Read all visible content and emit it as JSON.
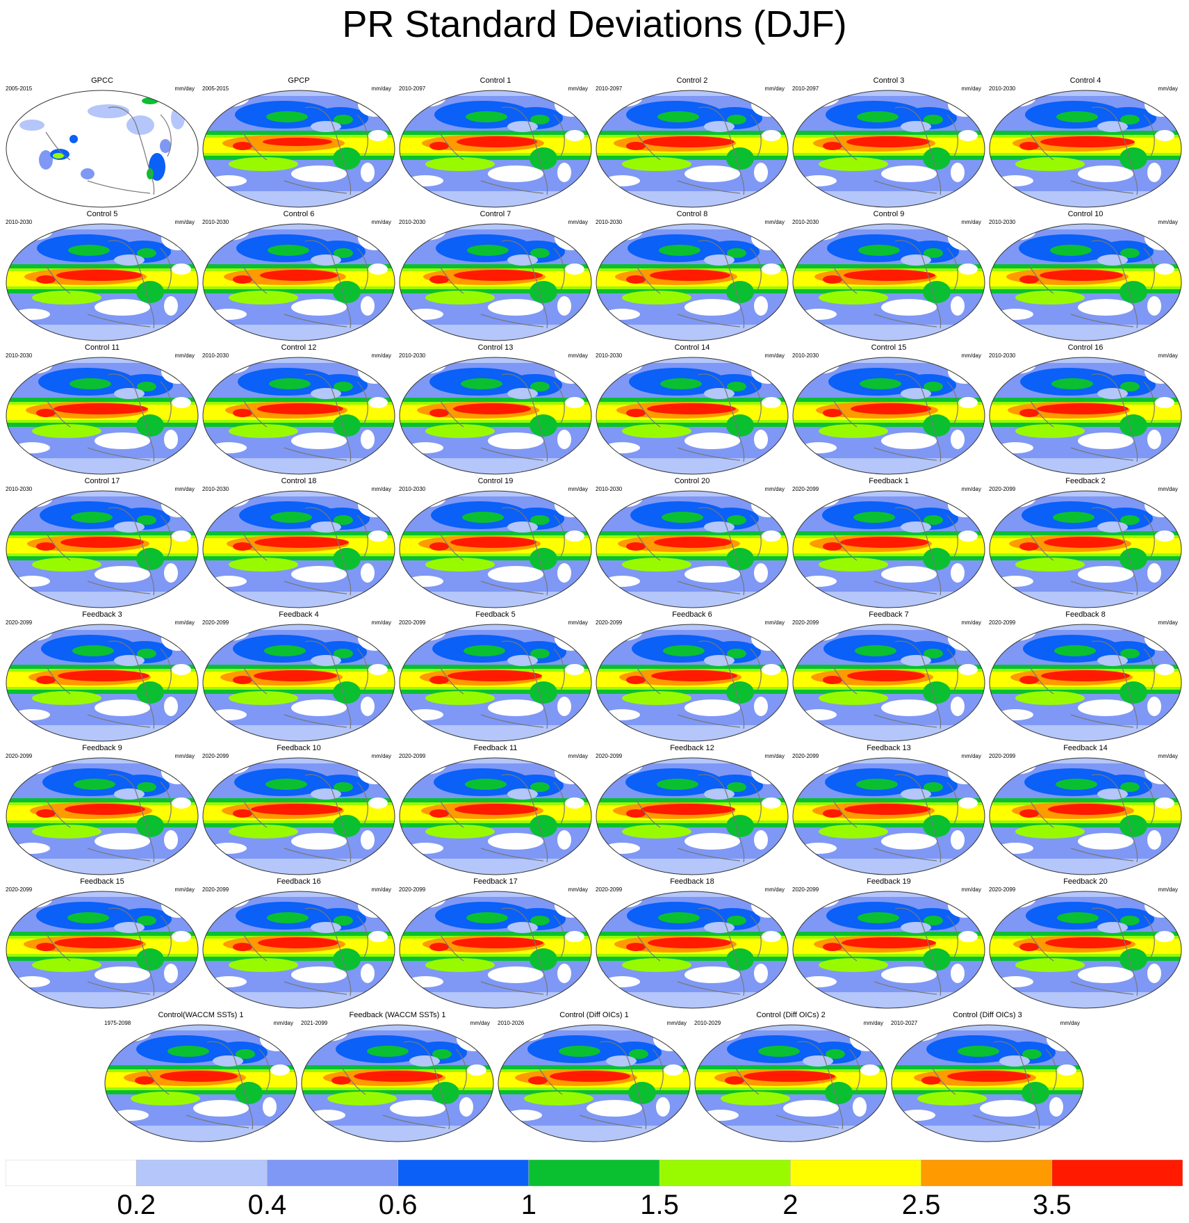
{
  "title": "PR Standard Deviations (DJF)",
  "units": "mm/day",
  "chart_data": {
    "type": "contour-map",
    "title": "PR Standard Deviations (DJF)",
    "projection": "Robinson (global, Pacific-centred)",
    "units": "mm/day",
    "colorbar": {
      "levels": [
        "0.2",
        "0.4",
        "0.6",
        "1",
        "1.5",
        "2",
        "2.5",
        "3.5"
      ],
      "colors": [
        "#ffffff",
        "#b4c6fa",
        "#7f98f5",
        "#0a60f7",
        "#0ac030",
        "#99fa00",
        "#ffff00",
        "#ff9a00",
        "#ff1a00"
      ]
    },
    "panels": [
      {
        "title": "GPCC",
        "period": "2005-2015"
      },
      {
        "title": "GPCP",
        "period": "2005-2015"
      },
      {
        "title": "Control 1",
        "period": "2010-2097"
      },
      {
        "title": "Control 2",
        "period": "2010-2097"
      },
      {
        "title": "Control 3",
        "period": "2010-2097"
      },
      {
        "title": "Control 4",
        "period": "2010-2030"
      },
      {
        "title": "Control 5",
        "period": "2010-2030"
      },
      {
        "title": "Control 6",
        "period": "2010-2030"
      },
      {
        "title": "Control 7",
        "period": "2010-2030"
      },
      {
        "title": "Control 8",
        "period": "2010-2030"
      },
      {
        "title": "Control 9",
        "period": "2010-2030"
      },
      {
        "title": "Control 10",
        "period": "2010-2030"
      },
      {
        "title": "Control 11",
        "period": "2010-2030"
      },
      {
        "title": "Control 12",
        "period": "2010-2030"
      },
      {
        "title": "Control 13",
        "period": "2010-2030"
      },
      {
        "title": "Control 14",
        "period": "2010-2030"
      },
      {
        "title": "Control 15",
        "period": "2010-2030"
      },
      {
        "title": "Control 16",
        "period": "2010-2030"
      },
      {
        "title": "Control 17",
        "period": "2010-2030"
      },
      {
        "title": "Control 18",
        "period": "2010-2030"
      },
      {
        "title": "Control 19",
        "period": "2010-2030"
      },
      {
        "title": "Control 20",
        "period": "2010-2030"
      },
      {
        "title": "Feedback 1",
        "period": "2020-2099"
      },
      {
        "title": "Feedback 2",
        "period": "2020-2099"
      },
      {
        "title": "Feedback 3",
        "period": "2020-2099"
      },
      {
        "title": "Feedback 4",
        "period": "2020-2099"
      },
      {
        "title": "Feedback 5",
        "period": "2020-2099"
      },
      {
        "title": "Feedback 6",
        "period": "2020-2099"
      },
      {
        "title": "Feedback 7",
        "period": "2020-2099"
      },
      {
        "title": "Feedback 8",
        "period": "2020-2099"
      },
      {
        "title": "Feedback 9",
        "period": "2020-2099"
      },
      {
        "title": "Feedback 10",
        "period": "2020-2099"
      },
      {
        "title": "Feedback 11",
        "period": "2020-2099"
      },
      {
        "title": "Feedback 12",
        "period": "2020-2099"
      },
      {
        "title": "Feedback 13",
        "period": "2020-2099"
      },
      {
        "title": "Feedback 14",
        "period": "2020-2099"
      },
      {
        "title": "Feedback 15",
        "period": "2020-2099"
      },
      {
        "title": "Feedback 16",
        "period": "2020-2099"
      },
      {
        "title": "Feedback 17",
        "period": "2020-2099"
      },
      {
        "title": "Feedback 18",
        "period": "2020-2099"
      },
      {
        "title": "Feedback 19",
        "period": "2020-2099"
      },
      {
        "title": "Feedback 20",
        "period": "2020-2099"
      },
      {
        "title": "Control(WACCM SSTs) 1",
        "period": "1975-2098"
      },
      {
        "title": "Feedback (WACCM SSTs) 1",
        "period": "2021-2099"
      },
      {
        "title": "Control (Diff OICs) 1",
        "period": "2010-2026"
      },
      {
        "title": "Control (Diff OICs) 2",
        "period": "2010-2029"
      },
      {
        "title": "Control (Diff OICs) 3",
        "period": "2010-2027"
      }
    ]
  }
}
